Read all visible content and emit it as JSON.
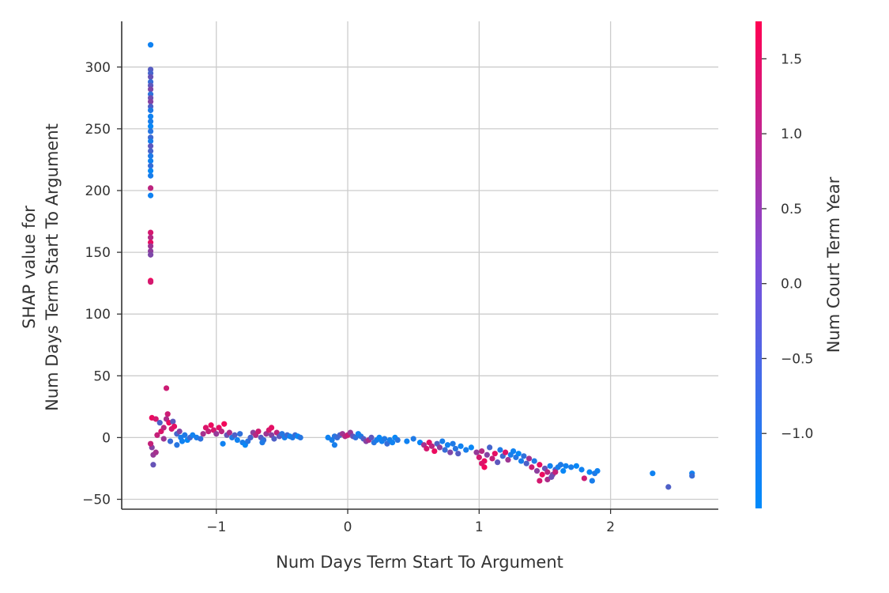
{
  "chart_data": {
    "type": "scatter",
    "title": "",
    "xlabel": "Num  Days Term Start To Argument",
    "ylabel_lines": [
      "SHAP value for",
      "Num  Days Term Start To Argument"
    ],
    "xlim": [
      -1.72,
      2.82
    ],
    "ylim": [
      -58,
      337
    ],
    "x_ticks": [
      -1,
      0,
      1,
      2
    ],
    "x_tick_labels": [
      "−1",
      "0",
      "1",
      "2"
    ],
    "y_ticks": [
      -50,
      0,
      50,
      100,
      150,
      200,
      250,
      300
    ],
    "y_tick_labels": [
      "−50",
      "0",
      "50",
      "100",
      "150",
      "200",
      "250",
      "300"
    ],
    "grid": true,
    "colorbar": {
      "label": "Num  Court Term Year",
      "range": [
        -1.5,
        1.75
      ],
      "ticks": [
        -1.0,
        -0.5,
        0.0,
        0.5,
        1.0,
        1.5
      ],
      "tick_labels": [
        "−1.0",
        "−0.5",
        "0.0",
        "0.5",
        "1.0",
        "1.5"
      ],
      "colors": [
        "#008bfb",
        "#ff0052"
      ]
    },
    "points": [
      [
        -1.5,
        318,
        -1.3
      ],
      [
        -1.5,
        298,
        -0.4
      ],
      [
        -1.5,
        295,
        -0.6
      ],
      [
        -1.5,
        292,
        -0.2
      ],
      [
        -1.5,
        288,
        -0.8
      ],
      [
        -1.5,
        285,
        -0.3
      ],
      [
        -1.5,
        282,
        0.1
      ],
      [
        -1.5,
        278,
        -0.9
      ],
      [
        -1.5,
        275,
        -0.1
      ],
      [
        -1.5,
        272,
        0.2
      ],
      [
        -1.5,
        268,
        -0.5
      ],
      [
        -1.5,
        265,
        -1.1
      ],
      [
        -1.5,
        260,
        -1.3
      ],
      [
        -1.5,
        256,
        -1.2
      ],
      [
        -1.5,
        252,
        -1.4
      ],
      [
        -1.5,
        248,
        -1.0
      ],
      [
        -1.5,
        243,
        -0.7
      ],
      [
        -1.5,
        240,
        -1.2
      ],
      [
        -1.5,
        236,
        -0.3
      ],
      [
        -1.5,
        232,
        -0.6
      ],
      [
        -1.5,
        228,
        -1.1
      ],
      [
        -1.5,
        224,
        -1.3
      ],
      [
        -1.5,
        220,
        -0.8
      ],
      [
        -1.5,
        216,
        -1.4
      ],
      [
        -1.5,
        212,
        -1.2
      ],
      [
        -1.5,
        202,
        0.9
      ],
      [
        -1.5,
        196,
        -1.3
      ],
      [
        -1.5,
        166,
        1.2
      ],
      [
        -1.5,
        162,
        0.8
      ],
      [
        -1.5,
        158,
        1.4
      ],
      [
        -1.5,
        155,
        0.5
      ],
      [
        -1.5,
        151,
        0.3
      ],
      [
        -1.5,
        148,
        0.1
      ],
      [
        -1.5,
        127,
        1.6
      ],
      [
        -1.5,
        126,
        1.2
      ],
      [
        -1.38,
        40,
        1.1
      ],
      [
        -1.48,
        -22,
        -0.2
      ],
      [
        -1.48,
        -14,
        0.4
      ],
      [
        -1.46,
        -12,
        0.6
      ],
      [
        -1.49,
        -8,
        0.2
      ],
      [
        -1.5,
        -5,
        1.0
      ],
      [
        -1.49,
        16,
        1.5
      ],
      [
        -1.46,
        15,
        1.2
      ],
      [
        -1.43,
        12,
        -0.5
      ],
      [
        -1.37,
        19,
        1.1
      ],
      [
        -1.38,
        15,
        0.7
      ],
      [
        -1.36,
        12,
        1.5
      ],
      [
        -1.33,
        13,
        -0.3
      ],
      [
        -1.42,
        5,
        1.3
      ],
      [
        -1.4,
        8,
        0.9
      ],
      [
        -1.34,
        7,
        1.2
      ],
      [
        -1.32,
        9,
        1.4
      ],
      [
        -1.3,
        3,
        -0.6
      ],
      [
        -1.28,
        5,
        0.2
      ],
      [
        -1.27,
        0,
        -1.2
      ],
      [
        -1.26,
        -3,
        -1.3
      ],
      [
        -1.3,
        -6,
        -1.0
      ],
      [
        -1.35,
        -3,
        -0.8
      ],
      [
        -1.4,
        -1,
        0.5
      ],
      [
        -1.45,
        2,
        1.0
      ],
      [
        -1.22,
        -2,
        -1.4
      ],
      [
        -1.24,
        2,
        -1.1
      ],
      [
        -1.2,
        0,
        -0.7
      ],
      [
        -1.18,
        2,
        -1.3
      ],
      [
        -1.15,
        0,
        -1.2
      ],
      [
        -1.12,
        -1,
        -0.9
      ],
      [
        -1.1,
        3,
        0.6
      ],
      [
        -1.08,
        8,
        1.3
      ],
      [
        -1.06,
        5,
        1.0
      ],
      [
        -1.04,
        10,
        1.5
      ],
      [
        -1.02,
        6,
        1.2
      ],
      [
        -1.0,
        3,
        0.4
      ],
      [
        -0.98,
        8,
        1.4
      ],
      [
        -0.96,
        5,
        0.9
      ],
      [
        -0.94,
        11,
        1.6
      ],
      [
        -0.92,
        2,
        -0.2
      ],
      [
        -0.9,
        4,
        0.7
      ],
      [
        -0.88,
        0,
        -1.1
      ],
      [
        -0.86,
        2,
        -0.5
      ],
      [
        -0.84,
        -2,
        -1.3
      ],
      [
        -0.82,
        3,
        -0.9
      ],
      [
        -0.8,
        -4,
        -1.2
      ],
      [
        -0.78,
        -6,
        -1.4
      ],
      [
        -0.76,
        -3,
        -1.0
      ],
      [
        -0.74,
        0,
        -0.6
      ],
      [
        -0.72,
        4,
        0.3
      ],
      [
        -0.7,
        2,
        0.8
      ],
      [
        -0.68,
        5,
        1.1
      ],
      [
        -0.66,
        0,
        -0.4
      ],
      [
        -0.64,
        -2,
        -0.8
      ],
      [
        -0.62,
        3,
        0.5
      ],
      [
        -0.6,
        6,
        1.2
      ],
      [
        -0.58,
        2,
        0.2
      ],
      [
        -0.56,
        -1,
        -0.5
      ],
      [
        -0.54,
        4,
        0.9
      ],
      [
        -0.52,
        1,
        -0.3
      ],
      [
        -0.5,
        3,
        -1.0
      ],
      [
        -0.48,
        0,
        -1.2
      ],
      [
        -0.46,
        2,
        -0.7
      ],
      [
        -0.44,
        1,
        -1.3
      ],
      [
        -0.42,
        0,
        -1.1
      ],
      [
        -0.4,
        2,
        -0.8
      ],
      [
        -0.38,
        1,
        -1.4
      ],
      [
        -0.36,
        0,
        -1.0
      ],
      [
        -0.58,
        8,
        1.4
      ],
      [
        -0.95,
        -5,
        -1.3
      ],
      [
        -0.65,
        -4,
        -1.1
      ],
      [
        -0.15,
        0,
        -1.3
      ],
      [
        -0.12,
        -2,
        -1.2
      ],
      [
        -0.1,
        1,
        -1.0
      ],
      [
        -0.08,
        0,
        -0.8
      ],
      [
        -0.06,
        2,
        -0.6
      ],
      [
        -0.04,
        3,
        0.5
      ],
      [
        -0.02,
        1,
        0.8
      ],
      [
        0.0,
        2,
        1.1
      ],
      [
        0.02,
        4,
        0.4
      ],
      [
        0.04,
        1,
        -0.2
      ],
      [
        0.06,
        0,
        -0.9
      ],
      [
        0.08,
        3,
        -1.3
      ],
      [
        0.1,
        1,
        -1.1
      ],
      [
        0.12,
        -1,
        -0.5
      ],
      [
        0.14,
        -3,
        0.2
      ],
      [
        0.16,
        -2,
        0.7
      ],
      [
        0.18,
        0,
        -0.3
      ],
      [
        0.2,
        -4,
        -1.0
      ],
      [
        0.22,
        -2,
        -1.2
      ],
      [
        0.24,
        0,
        -1.4
      ],
      [
        0.26,
        -3,
        -1.3
      ],
      [
        0.28,
        -1,
        -1.1
      ],
      [
        0.3,
        -5,
        -0.8
      ],
      [
        0.32,
        -2,
        -1.2
      ],
      [
        0.34,
        -4,
        -1.3
      ],
      [
        0.36,
        0,
        -1.4
      ],
      [
        0.38,
        -2,
        -1.0
      ],
      [
        -0.1,
        -6,
        -1.2
      ],
      [
        0.45,
        -3,
        -1.3
      ],
      [
        0.5,
        -1,
        -1.1
      ],
      [
        0.55,
        -4,
        -1.4
      ],
      [
        0.58,
        -6,
        0.6
      ],
      [
        0.6,
        -9,
        1.2
      ],
      [
        0.62,
        -4,
        1.4
      ],
      [
        0.64,
        -7,
        0.9
      ],
      [
        0.66,
        -11,
        1.5
      ],
      [
        0.68,
        -5,
        -0.5
      ],
      [
        0.7,
        -8,
        0.3
      ],
      [
        0.72,
        -3,
        -1.2
      ],
      [
        0.74,
        -10,
        -0.8
      ],
      [
        0.76,
        -6,
        -1.3
      ],
      [
        0.78,
        -12,
        0.1
      ],
      [
        0.8,
        -5,
        -1.1
      ],
      [
        0.82,
        -9,
        -1.0
      ],
      [
        0.84,
        -13,
        -0.4
      ],
      [
        0.86,
        -7,
        -1.3
      ],
      [
        0.9,
        -10,
        -1.2
      ],
      [
        0.94,
        -8,
        -1.4
      ],
      [
        0.98,
        -12,
        0.4
      ],
      [
        1.0,
        -16,
        1.2
      ],
      [
        1.02,
        -11,
        0.8
      ],
      [
        1.04,
        -19,
        1.5
      ],
      [
        1.06,
        -14,
        0.2
      ],
      [
        1.08,
        -8,
        -0.6
      ],
      [
        1.1,
        -17,
        1.0
      ],
      [
        1.12,
        -13,
        1.4
      ],
      [
        1.14,
        -20,
        -0.3
      ],
      [
        1.16,
        -10,
        -1.1
      ],
      [
        1.18,
        -15,
        -0.7
      ],
      [
        1.2,
        -12,
        1.3
      ],
      [
        1.22,
        -18,
        0.5
      ],
      [
        1.24,
        -14,
        -1.2
      ],
      [
        1.26,
        -11,
        -1.3
      ],
      [
        1.28,
        -16,
        -1.0
      ],
      [
        1.3,
        -13,
        -1.4
      ],
      [
        1.32,
        -19,
        -1.2
      ],
      [
        1.34,
        -15,
        -0.9
      ],
      [
        1.36,
        -21,
        -0.5
      ],
      [
        1.38,
        -17,
        0.6
      ],
      [
        1.4,
        -24,
        1.1
      ],
      [
        1.42,
        -19,
        -1.1
      ],
      [
        1.44,
        -27,
        0.3
      ],
      [
        1.46,
        -22,
        1.4
      ],
      [
        1.48,
        -30,
        1.5
      ],
      [
        1.5,
        -25,
        -0.2
      ],
      [
        1.52,
        -28,
        0.9
      ],
      [
        1.54,
        -23,
        -1.3
      ],
      [
        1.56,
        -30,
        0.1
      ],
      [
        1.58,
        -26,
        -0.6
      ],
      [
        1.6,
        -24,
        -1.2
      ],
      [
        1.62,
        -22,
        -1.1
      ],
      [
        1.64,
        -27,
        -1.4
      ],
      [
        1.66,
        -23,
        -1.3
      ],
      [
        1.04,
        -24,
        1.6
      ],
      [
        1.02,
        -21,
        1.3
      ],
      [
        1.46,
        -35,
        1.2
      ],
      [
        1.52,
        -34,
        0.7
      ],
      [
        1.55,
        -32,
        -0.1
      ],
      [
        1.58,
        -28,
        1.0
      ],
      [
        1.7,
        -24,
        -1.2
      ],
      [
        1.74,
        -23,
        -1.4
      ],
      [
        1.78,
        -26,
        -1.3
      ],
      [
        1.8,
        -33,
        1.1
      ],
      [
        1.84,
        -28,
        -1.4
      ],
      [
        1.86,
        -35,
        -1.2
      ],
      [
        1.88,
        -29,
        -1.1
      ],
      [
        1.9,
        -27,
        -1.3
      ],
      [
        2.32,
        -29,
        -1.3
      ],
      [
        2.44,
        -40,
        -0.5
      ],
      [
        2.62,
        -29,
        -1.3
      ],
      [
        2.62,
        -31,
        -0.8
      ]
    ]
  }
}
